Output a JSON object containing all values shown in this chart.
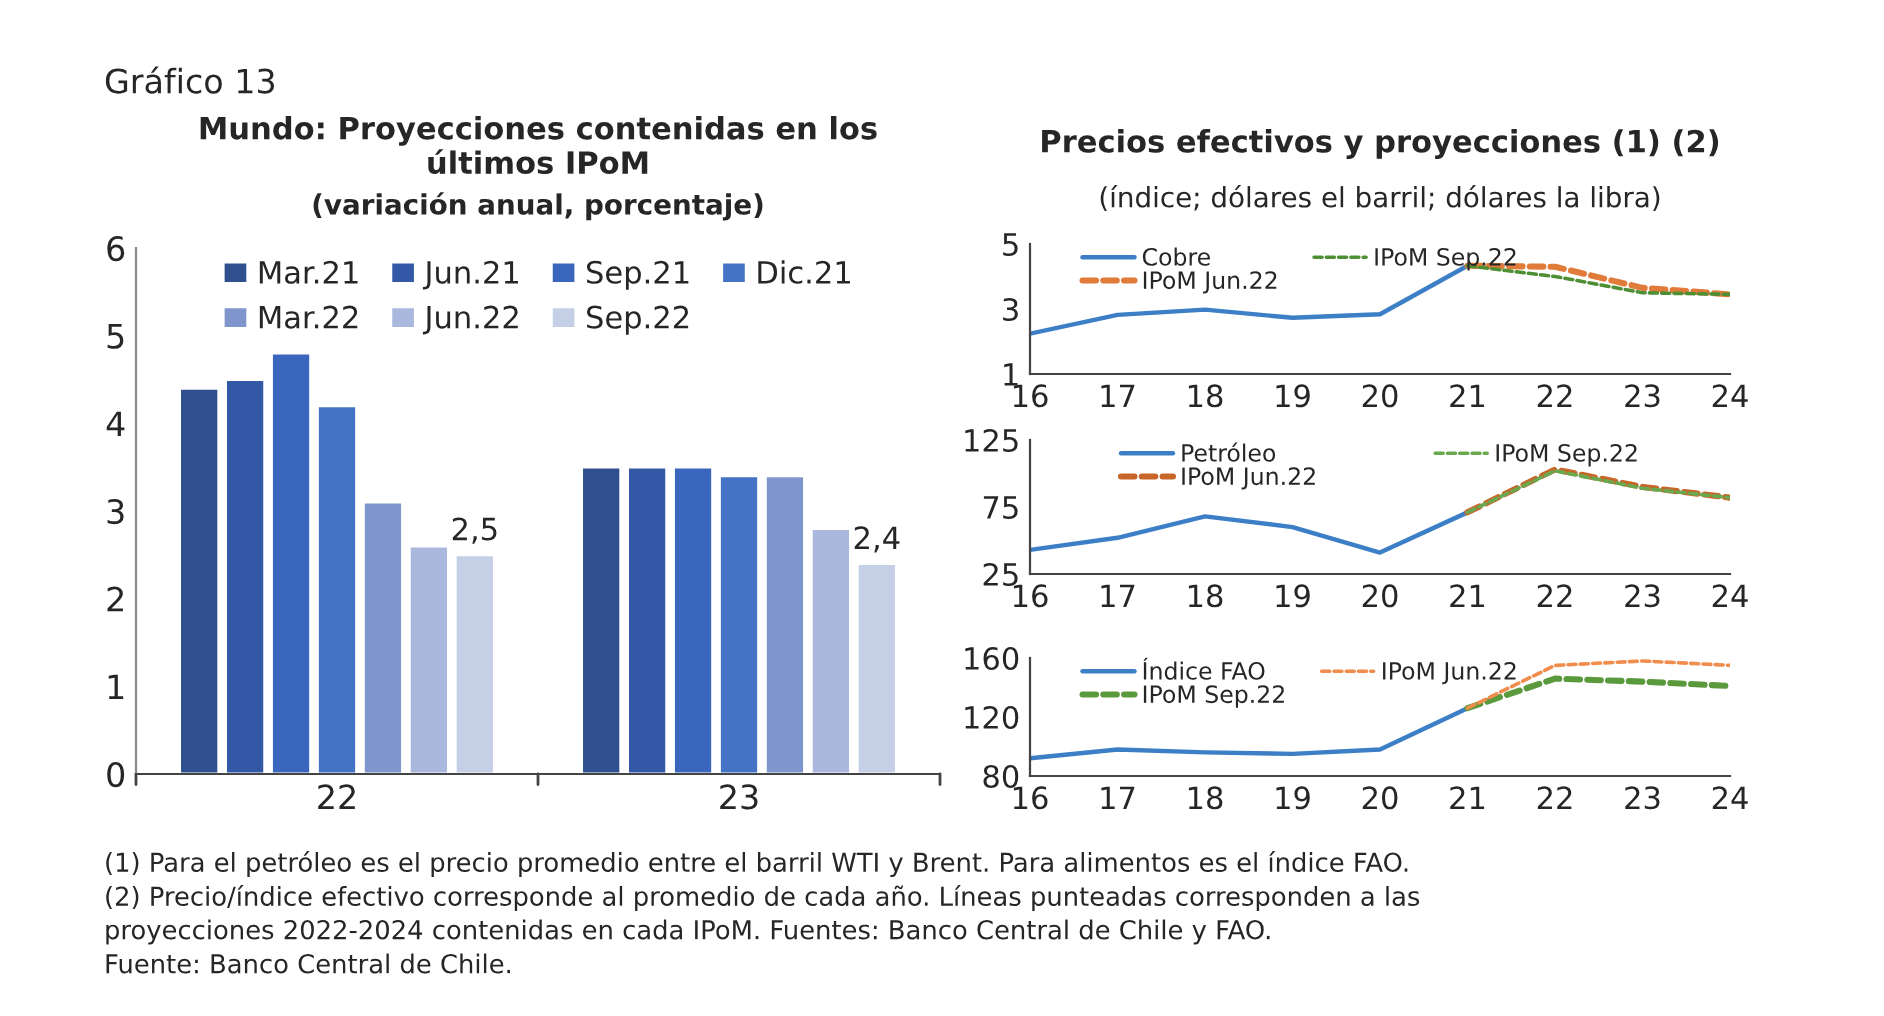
{
  "chart_data": [
    {
      "type": "bar",
      "title": "Mundo: Proyecciones contenidas en los\núltimos IPoM",
      "subtitle": "(variación anual, porcentaje)",
      "categories": [
        "22",
        "23"
      ],
      "series": [
        {
          "name": "Mar.21",
          "color": "#2f4f8f",
          "values": [
            4.4,
            3.5
          ]
        },
        {
          "name": "Jun.21",
          "color": "#3359a6",
          "values": [
            4.5,
            3.5
          ]
        },
        {
          "name": "Sep.21",
          "color": "#3a66bd",
          "values": [
            4.8,
            3.5
          ]
        },
        {
          "name": "Dic.21",
          "color": "#4472c4",
          "values": [
            4.2,
            3.4
          ]
        },
        {
          "name": "Mar.22",
          "color": "#7f96cc",
          "values": [
            3.1,
            3.4
          ]
        },
        {
          "name": "Jun.22",
          "color": "#a9b8dc",
          "values": [
            2.6,
            2.8
          ]
        },
        {
          "name": "Sep.22",
          "color": "#c5cfe6",
          "values": [
            2.5,
            2.4
          ],
          "value_labels": [
            "2,5",
            "2,4"
          ]
        }
      ],
      "ylim": [
        0,
        6
      ],
      "yticks": [
        0,
        1,
        2,
        3,
        4,
        5,
        6
      ],
      "grid": false,
      "legend": "top",
      "annotations": [
        "Gráfico 13",
        "(1) Para el petróleo es el precio promedio entre el barril WTI y Brent. Para alimentos es el índice FAO.",
        "(2) Precio/índice efectivo corresponde al promedio de cada año. Líneas punteadas corresponden a las",
        "proyecciones 2022-2024 contenidas en cada IPoM. Fuentes: Banco Central de Chile y FAO.",
        "Fuente: Banco Central de Chile."
      ]
    },
    {
      "type": "line",
      "title": "Precios efectivos y proyecciones (1) (2)",
      "subtitle": "(índice; dólares el barril; dólares la libra)",
      "series": [
        {
          "name": "Cobre",
          "color": "#3c7fc6",
          "x": [
            16,
            17,
            18,
            19,
            20,
            21
          ],
          "values": [
            2.24,
            2.82,
            2.98,
            2.73,
            2.84,
            4.33
          ],
          "line_style": "solid"
        },
        {
          "name": "IPoM Jun.22",
          "color": "#e07b39",
          "x": [
            21,
            22,
            23,
            24
          ],
          "values": [
            4.33,
            4.3,
            3.65,
            3.45
          ],
          "line_style": "dashed"
        },
        {
          "name": "IPoM Sep.22",
          "color": "#4e8f34",
          "x": [
            21,
            22,
            23,
            24
          ],
          "values": [
            4.33,
            4.0,
            3.5,
            3.45
          ],
          "line_style": "dashed"
        }
      ],
      "xlim": [
        16,
        24
      ],
      "xticks": [
        16,
        17,
        18,
        19,
        20,
        21,
        22,
        23,
        24
      ],
      "ylim": [
        1,
        5
      ],
      "yticks": [
        1,
        3,
        5
      ],
      "grid": false,
      "legend": "top left",
      "marker": "none"
    },
    {
      "type": "line",
      "series": [
        {
          "name": "Petróleo",
          "color": "#3c7fc6",
          "x": [
            16,
            17,
            18,
            19,
            20,
            21
          ],
          "values": [
            43,
            52,
            68,
            60,
            41,
            71
          ],
          "line_style": "solid"
        },
        {
          "name": "IPoM Jun.22",
          "color": "#c8662a",
          "x": [
            21,
            22,
            23,
            24
          ],
          "values": [
            71,
            103,
            90,
            82
          ],
          "line_style": "dashed"
        },
        {
          "name": "IPoM Sep.22",
          "color": "#6aa84f",
          "x": [
            21,
            22,
            23,
            24
          ],
          "values": [
            71,
            102,
            89,
            82
          ],
          "line_style": "dashed"
        }
      ],
      "xlim": [
        16,
        24
      ],
      "xticks": [
        16,
        17,
        18,
        19,
        20,
        21,
        22,
        23,
        24
      ],
      "ylim": [
        25,
        125
      ],
      "yticks": [
        25,
        75,
        125
      ],
      "grid": false,
      "legend": "top",
      "marker": "none"
    },
    {
      "type": "line",
      "series": [
        {
          "name": "Índice FAO",
          "color": "#3c7fc6",
          "x": [
            16,
            17,
            18,
            19,
            20,
            21
          ],
          "values": [
            92,
            98,
            96,
            95,
            98,
            126
          ],
          "line_style": "solid"
        },
        {
          "name": "IPoM Sep.22",
          "color": "#5a9a3c",
          "x": [
            21,
            22,
            23,
            24
          ],
          "values": [
            126,
            146,
            144,
            141
          ],
          "line_style": "dashed"
        },
        {
          "name": "IPoM Jun.22",
          "color": "#f08c4c",
          "x": [
            21,
            22,
            23,
            24
          ],
          "values": [
            126,
            155,
            158,
            155
          ],
          "line_style": "dashed"
        }
      ],
      "xlim": [
        16,
        24
      ],
      "xticks": [
        16,
        17,
        18,
        19,
        20,
        21,
        22,
        23,
        24
      ],
      "ylim": [
        80,
        160
      ],
      "yticks": [
        80,
        120,
        160
      ],
      "grid": false,
      "legend": "top left",
      "marker": "none"
    }
  ]
}
